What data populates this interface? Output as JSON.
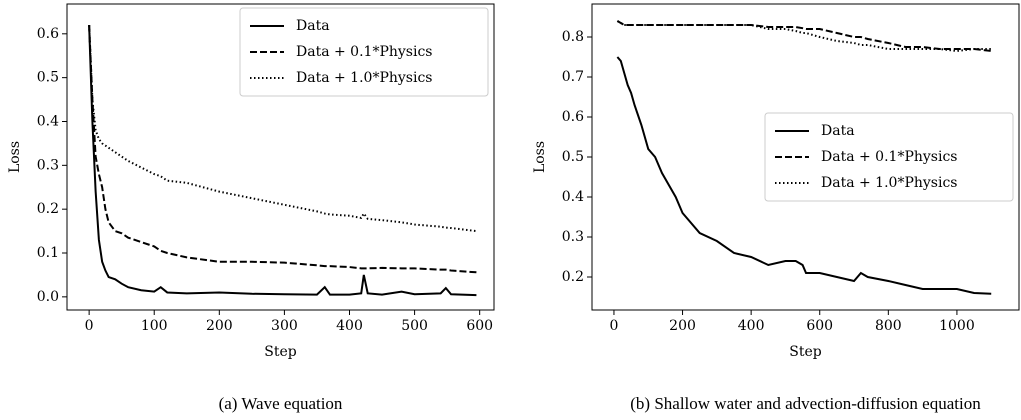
{
  "chart_data": [
    {
      "type": "line",
      "caption": "(a) Wave equation",
      "xlabel": "Step",
      "ylabel": "Loss",
      "x": [
        0,
        5,
        10,
        15,
        20,
        25,
        30,
        40,
        50,
        60,
        80,
        100,
        110,
        120,
        150,
        200,
        250,
        300,
        350,
        362,
        370,
        400,
        418,
        422,
        428,
        450,
        480,
        500,
        540,
        548,
        556,
        595
      ],
      "series": [
        {
          "name": "Data",
          "color": "#000000",
          "style": "solid",
          "values": [
            0.62,
            0.4,
            0.24,
            0.13,
            0.08,
            0.06,
            0.045,
            0.04,
            0.03,
            0.022,
            0.015,
            0.012,
            0.022,
            0.01,
            0.008,
            0.01,
            0.007,
            0.006,
            0.005,
            0.022,
            0.005,
            0.005,
            0.008,
            0.05,
            0.008,
            0.005,
            0.012,
            0.006,
            0.008,
            0.02,
            0.006,
            0.004
          ]
        },
        {
          "name": "Data + 0.1*Physics",
          "color": "#000000",
          "style": "dashed",
          "values": [
            0.62,
            0.45,
            0.32,
            0.28,
            0.25,
            0.2,
            0.17,
            0.15,
            0.145,
            0.135,
            0.125,
            0.115,
            0.105,
            0.1,
            0.09,
            0.08,
            0.08,
            0.078,
            0.072,
            0.07,
            0.07,
            0.068,
            0.065,
            0.065,
            0.065,
            0.066,
            0.065,
            0.065,
            0.062,
            0.062,
            0.06,
            0.056
          ]
        },
        {
          "name": "Data + 1.0*Physics",
          "color": "#000000",
          "style": "dotted",
          "values": [
            0.62,
            0.45,
            0.38,
            0.36,
            0.35,
            0.345,
            0.34,
            0.33,
            0.32,
            0.31,
            0.295,
            0.28,
            0.275,
            0.265,
            0.26,
            0.24,
            0.225,
            0.21,
            0.195,
            0.19,
            0.188,
            0.185,
            0.18,
            0.19,
            0.178,
            0.175,
            0.17,
            0.165,
            0.16,
            0.158,
            0.157,
            0.15
          ]
        }
      ],
      "xlim": [
        -34,
        622
      ],
      "xticks": [
        0,
        100,
        200,
        300,
        400,
        500,
        600
      ],
      "ylim": [
        -0.03,
        0.668
      ],
      "yticks": [
        {
          "value": 0,
          "label": "0.0"
        },
        0.1,
        0.2,
        0.3,
        0.4,
        0.5,
        0.6
      ],
      "legend": "upper right"
    },
    {
      "type": "line",
      "caption": "(b) Shallow water and advection-diffusion equation",
      "xlabel": "Step",
      "ylabel": "Loss",
      "x": [
        10,
        20,
        30,
        40,
        50,
        60,
        80,
        100,
        120,
        140,
        160,
        180,
        200,
        250,
        300,
        350,
        400,
        450,
        500,
        530,
        550,
        560,
        600,
        650,
        700,
        720,
        740,
        800,
        850,
        900,
        950,
        1000,
        1050,
        1100
      ],
      "series": [
        {
          "name": "Data",
          "color": "#000000",
          "style": "solid",
          "values": [
            0.75,
            0.74,
            0.71,
            0.68,
            0.66,
            0.63,
            0.58,
            0.52,
            0.5,
            0.46,
            0.43,
            0.4,
            0.36,
            0.31,
            0.29,
            0.26,
            0.25,
            0.23,
            0.24,
            0.24,
            0.23,
            0.21,
            0.21,
            0.2,
            0.19,
            0.21,
            0.2,
            0.19,
            0.18,
            0.17,
            0.17,
            0.17,
            0.16,
            0.158
          ]
        },
        {
          "name": "Data + 0.1*Physics",
          "color": "#000000",
          "style": "dashed",
          "values": [
            0.84,
            0.835,
            0.83,
            0.83,
            0.83,
            0.83,
            0.83,
            0.83,
            0.83,
            0.83,
            0.83,
            0.83,
            0.83,
            0.83,
            0.83,
            0.83,
            0.83,
            0.825,
            0.825,
            0.825,
            0.822,
            0.82,
            0.82,
            0.81,
            0.8,
            0.8,
            0.795,
            0.785,
            0.775,
            0.775,
            0.77,
            0.77,
            0.77,
            0.765
          ]
        },
        {
          "name": "Data + 1.0*Physics",
          "color": "#000000",
          "style": "dotted",
          "values": [
            0.84,
            0.835,
            0.83,
            0.83,
            0.83,
            0.83,
            0.83,
            0.83,
            0.83,
            0.83,
            0.83,
            0.83,
            0.83,
            0.83,
            0.83,
            0.83,
            0.83,
            0.82,
            0.82,
            0.815,
            0.81,
            0.81,
            0.8,
            0.79,
            0.785,
            0.78,
            0.78,
            0.77,
            0.77,
            0.77,
            0.77,
            0.765,
            0.77,
            0.77
          ]
        }
      ],
      "xlim": [
        -64,
        1181
      ],
      "xticks": [
        0,
        200,
        400,
        600,
        800,
        1000
      ],
      "ylim": [
        0.1175,
        0.8825
      ],
      "yticks": [
        0.2,
        0.3,
        0.4,
        0.5,
        0.6,
        0.7,
        0.8
      ],
      "legend": "center right"
    }
  ]
}
